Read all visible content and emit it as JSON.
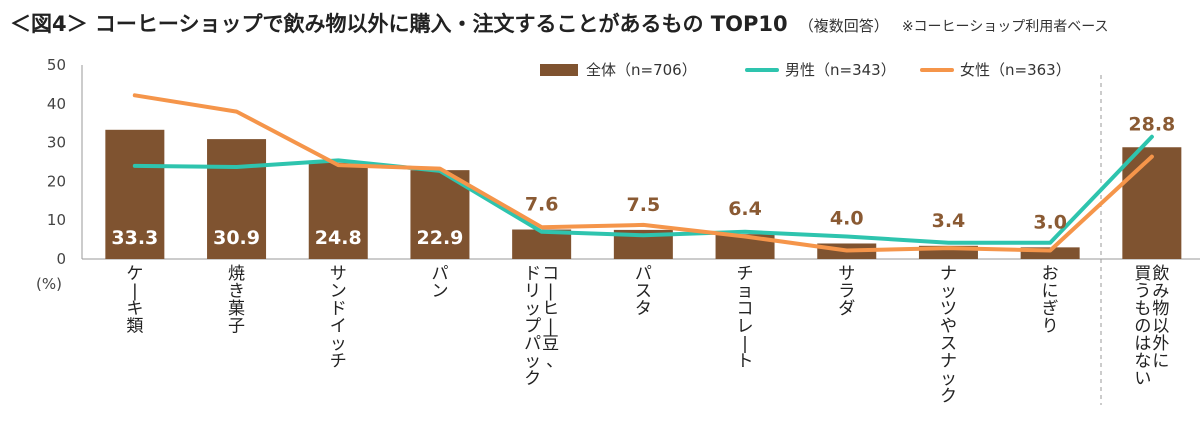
{
  "header": {
    "title": "＜図4＞ コーヒーショップで飲み物以外に購入・注文することがあるもの TOP10",
    "subtitle": "（複数回答）",
    "note": "※コーヒーショップ利用者ベース"
  },
  "chart_data": {
    "type": "bar",
    "categories": [
      "ケーキ類",
      "焼き菓子",
      "サンドイッチ",
      "パン",
      "コーヒー豆、ドリップパック",
      "パスタ",
      "チョコレート",
      "サラダ",
      "ナッツやスナック",
      "おにぎり",
      "飲み物以外に買うものはない"
    ],
    "category_lines": [
      [
        "ケーキ類"
      ],
      [
        "焼き菓子"
      ],
      [
        "サンドイッチ"
      ],
      [
        "パン"
      ],
      [
        "コーヒー豆、",
        "ドリップパック"
      ],
      [
        "パスタ"
      ],
      [
        "チョコレート"
      ],
      [
        "サラダ"
      ],
      [
        "ナッツやスナック"
      ],
      [
        "おにぎり"
      ],
      [
        "飲み物以外に",
        "買うものはない"
      ]
    ],
    "series": [
      {
        "name": "全体（n=706）",
        "kind": "bar",
        "color": "#7f5330",
        "values": [
          33.3,
          30.9,
          24.8,
          22.9,
          7.6,
          7.5,
          6.4,
          4.0,
          3.4,
          3.0,
          28.8
        ]
      },
      {
        "name": "男性（n=343）",
        "kind": "line",
        "color": "#2ec4ae",
        "values": [
          24.0,
          23.7,
          25.4,
          22.7,
          7.0,
          6.1,
          7.0,
          5.8,
          4.2,
          4.2,
          31.5
        ]
      },
      {
        "name": "女性（n=363）",
        "kind": "line",
        "color": "#f5954a",
        "values": [
          42.2,
          38.0,
          24.2,
          23.3,
          8.2,
          8.8,
          5.8,
          2.2,
          2.8,
          2.2,
          26.4
        ]
      }
    ],
    "data_labels": [
      "33.3",
      "30.9",
      "24.8",
      "22.9",
      "7.6",
      "7.5",
      "6.4",
      "4.0",
      "3.4",
      "3.0",
      "28.8"
    ],
    "ylim": [
      0,
      50
    ],
    "yticks": [
      0,
      10,
      20,
      30,
      40,
      50
    ],
    "yunit": "(%)",
    "grid": false,
    "legend_position": "top-right",
    "separator_before_last": true
  }
}
